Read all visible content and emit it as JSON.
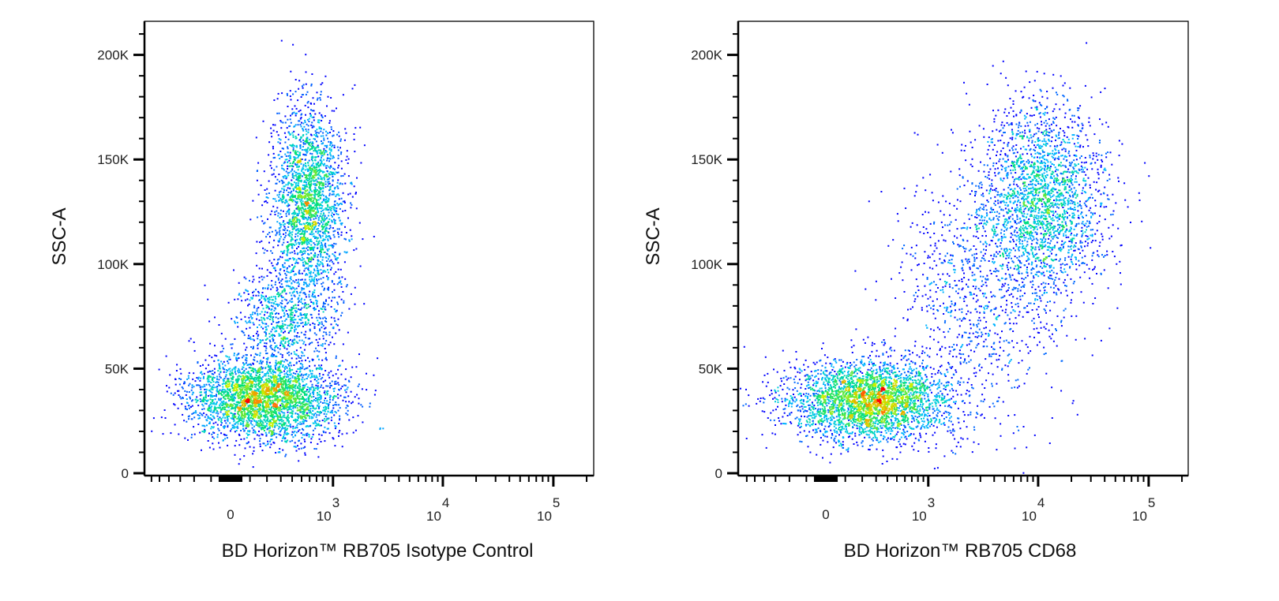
{
  "chart_data": [
    {
      "type": "scatter",
      "style": "pseudocolor density dot plot",
      "xlabel": "BD Horizon™ RB705 Isotype Control",
      "ylabel": "SSC-A",
      "x_scale": "biexponential",
      "xlim": [
        -700,
        233000
      ],
      "ylim": [
        0,
        216000
      ],
      "x_tick_labels": [
        {
          "value": 0,
          "base": "0",
          "exp": ""
        },
        {
          "value": 1000,
          "base": "10",
          "exp": "3"
        },
        {
          "value": 10000,
          "base": "10",
          "exp": "4"
        },
        {
          "value": 100000,
          "base": "10",
          "exp": "5"
        }
      ],
      "y_tick_labels": [
        {
          "value": 0,
          "label": "0"
        },
        {
          "value": 50000,
          "label": "50K"
        },
        {
          "value": 100000,
          "label": "100K"
        },
        {
          "value": 150000,
          "label": "150K"
        },
        {
          "value": 200000,
          "label": "200K"
        }
      ],
      "populations": [
        {
          "x_center": 180,
          "x_range": [
            -350,
            1000
          ],
          "y_center": 36000,
          "y_range": [
            18000,
            60000
          ],
          "count": 3200
        },
        {
          "x_center": 580,
          "x_range": [
            265,
            1600
          ],
          "y_center": 130000,
          "y_range": [
            80000,
            180000
          ],
          "count": 2300
        },
        {
          "x_center": 320,
          "x_range": [
            0,
            1100
          ],
          "y_center": 75000,
          "y_range": [
            50000,
            100000
          ],
          "count": 700
        }
      ],
      "colormap": [
        "#0000ff",
        "#00c8ff",
        "#00e070",
        "#c8f000",
        "#ff8000",
        "#ff0000"
      ]
    },
    {
      "type": "scatter",
      "style": "pseudocolor density dot plot",
      "xlabel": "BD Horizon™ RB705 CD68",
      "ylabel": "SSC-A",
      "x_scale": "biexponential",
      "xlim": [
        -700,
        233000
      ],
      "ylim": [
        0,
        216000
      ],
      "x_tick_labels": [
        {
          "value": 0,
          "base": "0",
          "exp": ""
        },
        {
          "value": 1000,
          "base": "10",
          "exp": "3"
        },
        {
          "value": 10000,
          "base": "10",
          "exp": "4"
        },
        {
          "value": 100000,
          "base": "10",
          "exp": "5"
        }
      ],
      "y_tick_labels": [
        {
          "value": 0,
          "label": "0"
        },
        {
          "value": 50000,
          "label": "50K"
        },
        {
          "value": 100000,
          "label": "100K"
        },
        {
          "value": 150000,
          "label": "150K"
        },
        {
          "value": 200000,
          "label": "200K"
        }
      ],
      "populations": [
        {
          "x_center": 243,
          "x_range": [
            -460,
            1000
          ],
          "y_center": 35000,
          "y_range": [
            18000,
            58000
          ],
          "count": 3200
        },
        {
          "x_center": 10800,
          "x_range": [
            3450,
            48000
          ],
          "y_center": 130000,
          "y_range": [
            80000,
            180000
          ],
          "count": 2300
        },
        {
          "x_center": 2500,
          "x_range": [
            400,
            15000
          ],
          "y_center": 85000,
          "y_range": [
            30000,
            170000
          ],
          "count": 900
        }
      ],
      "colormap": [
        "#0000ff",
        "#00c8ff",
        "#00e070",
        "#c8f000",
        "#ff8000",
        "#ff0000"
      ]
    }
  ]
}
